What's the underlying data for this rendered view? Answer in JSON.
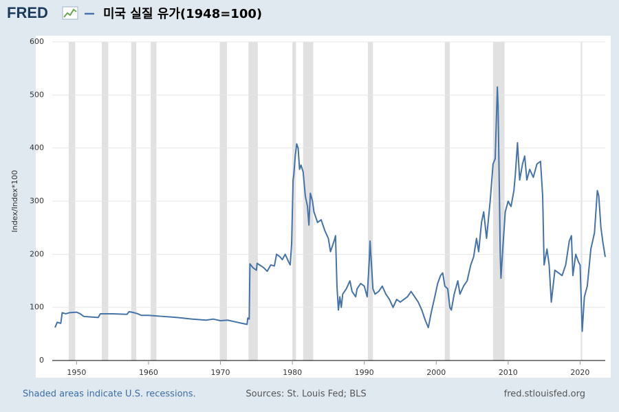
{
  "logo": "FRED",
  "chart_data": {
    "type": "line",
    "ylabel": "Index/Index*100",
    "xlim": [
      1947,
      2023.5
    ],
    "xticks": [
      1950,
      1960,
      1970,
      1980,
      1990,
      2000,
      2010,
      2020
    ],
    "ylim": [
      0,
      600
    ],
    "yticks": [
      0,
      100,
      200,
      300,
      400,
      500,
      600
    ],
    "grid": true,
    "recession_color": "#e1e1e1",
    "recessions": [
      [
        1948.9,
        1949.8
      ],
      [
        1953.5,
        1954.4
      ],
      [
        1957.6,
        1958.3
      ],
      [
        1960.3,
        1961.1
      ],
      [
        1969.9,
        1970.9
      ],
      [
        1973.9,
        1975.2
      ],
      [
        1980.0,
        1980.5
      ],
      [
        1981.5,
        1982.9
      ],
      [
        1990.5,
        1991.2
      ],
      [
        2001.2,
        2001.9
      ],
      [
        2007.9,
        2009.5
      ],
      [
        2020.1,
        2020.3
      ]
    ],
    "series": [
      {
        "name": "미국 실질 유가(1948=100)",
        "color": "#4572a7",
        "x": [
          1947.0,
          1947.3,
          1947.8,
          1948.0,
          1948.5,
          1949,
          1950,
          1950.5,
          1951,
          1952,
          1953,
          1953.3,
          1955,
          1957,
          1957.3,
          1958,
          1958.5,
          1959,
          1960,
          1962,
          1964,
          1966,
          1968,
          1969,
          1970,
          1971,
          1972,
          1973,
          1973.7,
          1973.8,
          1974.0,
          1974.1,
          1974.5,
          1975,
          1975.1,
          1976,
          1976.5,
          1977,
          1977.5,
          1977.8,
          1978.3,
          1978.6,
          1979,
          1979.5,
          1979.7,
          1979.9,
          1980.1,
          1980.2,
          1980.4,
          1980.6,
          1980.8,
          1981.0,
          1981.2,
          1981.5,
          1981.8,
          1982.1,
          1982.3,
          1982.5,
          1982.8,
          1983,
          1983.5,
          1984,
          1984.5,
          1985,
          1985.3,
          1985.8,
          1986.0,
          1986.2,
          1986.4,
          1986.6,
          1986.8,
          1987,
          1987.5,
          1988,
          1988.3,
          1988.8,
          1989,
          1989.5,
          1990,
          1990.4,
          1990.7,
          1990.8,
          1991.0,
          1991.2,
          1991.5,
          1992,
          1992.5,
          1993,
          1993.5,
          1994,
          1994.5,
          1995,
          1996,
          1996.5,
          1997,
          1997.5,
          1998,
          1998.5,
          1998.9,
          1999.3,
          1999.8,
          2000.2,
          2000.6,
          2000.9,
          2001.2,
          2001.6,
          2001.9,
          2002.1,
          2002.5,
          2003.0,
          2003.3,
          2003.8,
          2004.3,
          2004.8,
          2005.2,
          2005.6,
          2005.9,
          2006.3,
          2006.6,
          2007.0,
          2007.5,
          2007.9,
          2008.2,
          2008.4,
          2008.5,
          2008.6,
          2008.8,
          2008.9,
          2009.0,
          2009.3,
          2009.6,
          2010.0,
          2010.4,
          2010.8,
          2011.0,
          2011.3,
          2011.6,
          2012.0,
          2012.3,
          2012.6,
          2013,
          2013.5,
          2014,
          2014.5,
          2014.8,
          2015.0,
          2015.4,
          2015.7,
          2016.0,
          2016.5,
          2017,
          2017.5,
          2018,
          2018.5,
          2018.8,
          2019.0,
          2019.4,
          2019.8,
          2020.0,
          2020.3,
          2020.6,
          2021.0,
          2021.5,
          2022.0,
          2022.4,
          2022.6,
          2022.9,
          2023.2,
          2023.5
        ],
        "values": [
          62,
          72,
          70,
          90,
          88,
          90,
          91,
          88,
          83,
          82,
          81,
          88,
          88,
          87,
          92,
          90,
          88,
          85,
          85,
          83,
          81,
          78,
          76,
          78,
          75,
          76,
          73,
          70,
          68,
          80,
          78,
          182,
          175,
          170,
          183,
          175,
          168,
          180,
          178,
          200,
          195,
          190,
          200,
          185,
          180,
          220,
          340,
          350,
          385,
          408,
          400,
          360,
          368,
          355,
          310,
          290,
          255,
          315,
          300,
          280,
          260,
          265,
          245,
          230,
          205,
          225,
          235,
          140,
          95,
          120,
          100,
          125,
          135,
          150,
          130,
          120,
          135,
          145,
          140,
          120,
          190,
          225,
          180,
          135,
          125,
          130,
          140,
          125,
          115,
          100,
          115,
          110,
          120,
          130,
          120,
          110,
          95,
          75,
          62,
          90,
          120,
          145,
          160,
          165,
          140,
          135,
          100,
          95,
          125,
          150,
          125,
          140,
          150,
          180,
          195,
          230,
          205,
          260,
          280,
          230,
          300,
          370,
          380,
          470,
          515,
          480,
          300,
          200,
          155,
          220,
          280,
          300,
          290,
          320,
          350,
          410,
          340,
          370,
          385,
          340,
          360,
          345,
          370,
          375,
          310,
          180,
          210,
          180,
          110,
          170,
          165,
          160,
          180,
          225,
          235,
          160,
          200,
          185,
          180,
          55,
          120,
          140,
          210,
          240,
          320,
          310,
          250,
          220,
          195
        ]
      }
    ]
  },
  "footer": {
    "left": "Shaded areas indicate U.S. recessions.",
    "center": "Sources: St. Louis Fed; BLS",
    "right": "fred.stlouisfed.org"
  }
}
